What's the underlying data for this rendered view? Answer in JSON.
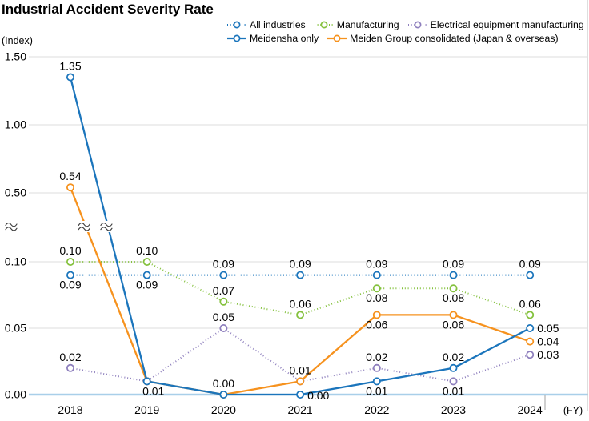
{
  "title": "Industrial Accident Severity Rate",
  "colors": {
    "blue": "#1b75bc",
    "green": "#84c13d",
    "purple": "#8e7fbd",
    "orange": "#f6921e",
    "baseline": "#a9cfe9",
    "grid": "#dedede",
    "spine": "#c9c9c9",
    "break_mark": "#3c3c3c"
  },
  "chart_data": {
    "type": "line",
    "title": "Industrial Accident Severity Rate",
    "ylabel": "(Index)",
    "xlabel": "(FY)",
    "x_labels": [
      "2018",
      "2019",
      "2020",
      "2021",
      "2022",
      "2023",
      "2024"
    ],
    "y_ticks": [
      {
        "v": 0.0,
        "label": "0.00"
      },
      {
        "v": 0.05,
        "label": "0.05"
      },
      {
        "v": 0.1,
        "label": "0.10"
      },
      {
        "v": 0.5,
        "label": "0.50"
      },
      {
        "v": 1.0,
        "label": "1.00"
      },
      {
        "v": 1.5,
        "label": "1.50"
      }
    ],
    "y_axis_break": {
      "between": [
        0.1,
        0.5
      ]
    },
    "grid": true,
    "legend_position": "top-right",
    "series": [
      {
        "name": "All industries",
        "color": "blue",
        "style": "dotted",
        "legend_row": 0,
        "values": [
          0.09,
          0.09,
          0.09,
          0.09,
          0.09,
          0.09,
          0.09
        ]
      },
      {
        "name": "Manufacturing",
        "color": "green",
        "style": "dotted",
        "legend_row": 0,
        "values": [
          0.1,
          0.1,
          0.07,
          0.06,
          0.08,
          0.08,
          0.06
        ]
      },
      {
        "name": "Electrical equipment manufacturing",
        "color": "purple",
        "style": "dotted",
        "legend_row": 0,
        "values": [
          0.02,
          0.01,
          0.05,
          0.01,
          0.02,
          0.01,
          0.03
        ]
      },
      {
        "name": "Meidensha only",
        "color": "blue",
        "style": "solid",
        "legend_row": 1,
        "values": [
          1.35,
          0.01,
          0.0,
          0.0,
          0.01,
          0.02,
          0.05
        ]
      },
      {
        "name": "Meiden Group consolidated (Japan & overseas)",
        "color": "orange",
        "style": "solid",
        "legend_row": 1,
        "values": [
          0.54,
          0.01,
          0.0,
          0.01,
          0.06,
          0.06,
          0.04
        ]
      }
    ],
    "data_labels": [
      {
        "s": 3,
        "i": 0,
        "text": "1.35",
        "pos": "above"
      },
      {
        "s": 4,
        "i": 0,
        "text": "0.54",
        "pos": "above"
      },
      {
        "s": 1,
        "i": 0,
        "text": "0.10",
        "pos": "above"
      },
      {
        "s": 0,
        "i": 0,
        "text": "0.09",
        "pos": "below"
      },
      {
        "s": 2,
        "i": 0,
        "text": "0.02",
        "pos": "above"
      },
      {
        "s": 1,
        "i": 1,
        "text": "0.10",
        "pos": "above"
      },
      {
        "s": 0,
        "i": 1,
        "text": "0.09",
        "pos": "below"
      },
      {
        "s": 3,
        "i": 1,
        "text": "0.01",
        "pos": "below",
        "dx": 8
      },
      {
        "s": 0,
        "i": 2,
        "text": "0.09",
        "pos": "above"
      },
      {
        "s": 1,
        "i": 2,
        "text": "0.07",
        "pos": "above"
      },
      {
        "s": 2,
        "i": 2,
        "text": "0.05",
        "pos": "above"
      },
      {
        "s": 3,
        "i": 2,
        "text": "0.00",
        "pos": "above"
      },
      {
        "s": 0,
        "i": 3,
        "text": "0.09",
        "pos": "above"
      },
      {
        "s": 1,
        "i": 3,
        "text": "0.06",
        "pos": "above"
      },
      {
        "s": 4,
        "i": 3,
        "text": "0.01",
        "pos": "above"
      },
      {
        "s": 3,
        "i": 3,
        "text": "0.00",
        "pos": "right",
        "dy": 1
      },
      {
        "s": 0,
        "i": 4,
        "text": "0.09",
        "pos": "above"
      },
      {
        "s": 1,
        "i": 4,
        "text": "0.08",
        "pos": "below"
      },
      {
        "s": 4,
        "i": 4,
        "text": "0.06",
        "pos": "below"
      },
      {
        "s": 2,
        "i": 4,
        "text": "0.02",
        "pos": "above"
      },
      {
        "s": 3,
        "i": 4,
        "text": "0.01",
        "pos": "below"
      },
      {
        "s": 0,
        "i": 5,
        "text": "0.09",
        "pos": "above"
      },
      {
        "s": 1,
        "i": 5,
        "text": "0.08",
        "pos": "below"
      },
      {
        "s": 4,
        "i": 5,
        "text": "0.06",
        "pos": "below"
      },
      {
        "s": 3,
        "i": 5,
        "text": "0.02",
        "pos": "above"
      },
      {
        "s": 2,
        "i": 5,
        "text": "0.01",
        "pos": "below"
      },
      {
        "s": 0,
        "i": 6,
        "text": "0.09",
        "pos": "above"
      },
      {
        "s": 1,
        "i": 6,
        "text": "0.06",
        "pos": "above"
      },
      {
        "s": 3,
        "i": 6,
        "text": "0.05",
        "pos": "right"
      },
      {
        "s": 4,
        "i": 6,
        "text": "0.04",
        "pos": "right"
      },
      {
        "s": 2,
        "i": 6,
        "text": "0.03",
        "pos": "right"
      }
    ]
  }
}
